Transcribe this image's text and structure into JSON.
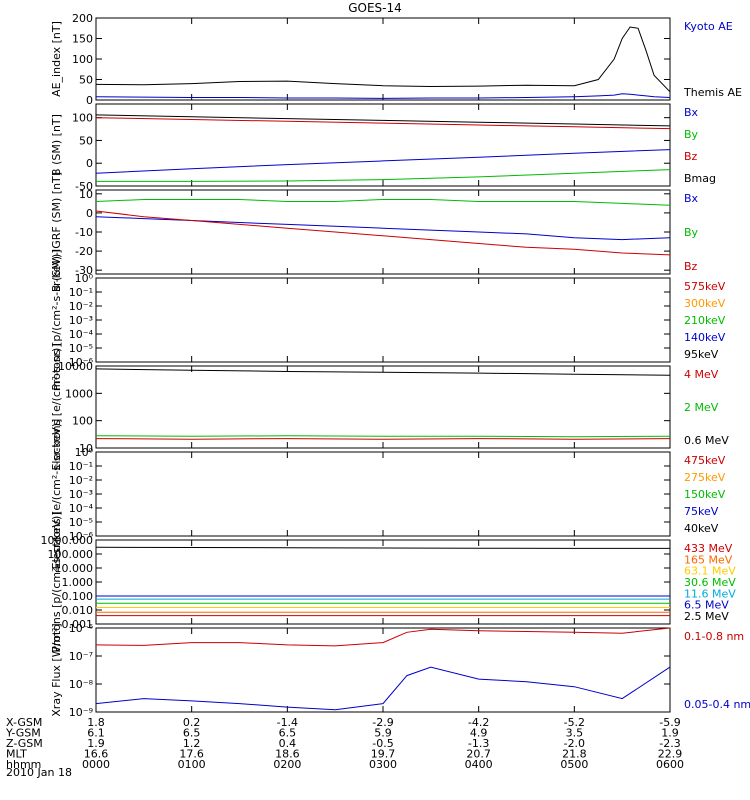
{
  "title": "GOES-14",
  "chart_data": [
    {
      "type": "line",
      "ylabel": "AE_index [nT]",
      "yscale": "linear",
      "ylim": [
        0,
        200
      ],
      "yticks": [
        "0",
        "50",
        "100",
        "150",
        "200"
      ],
      "x": [
        "0000",
        "0030",
        "0100",
        "0130",
        "0200",
        "0230",
        "0300",
        "0330",
        "0400",
        "0430",
        "0500",
        "0515",
        "0525",
        "0530",
        "0535",
        "0540",
        "0545",
        "0550",
        "0600"
      ],
      "series": [
        {
          "name": "Kyoto AE",
          "color": "#0000cc",
          "values": [
            8,
            7,
            6,
            6,
            5,
            5,
            4,
            5,
            5,
            6,
            8,
            10,
            12,
            15,
            14,
            12,
            10,
            8,
            6
          ]
        },
        {
          "name": "Themis AE",
          "color": "#000000",
          "values": [
            38,
            37,
            40,
            45,
            46,
            40,
            35,
            33,
            34,
            36,
            35,
            50,
            100,
            150,
            178,
            175,
            120,
            60,
            20
          ]
        }
      ]
    },
    {
      "type": "line",
      "ylabel": "B (SM) [nT]",
      "yscale": "linear",
      "ylim": [
        -50,
        130
      ],
      "yticks": [
        "-50",
        "0",
        "50",
        "100"
      ],
      "x": [
        "0000",
        "0100",
        "0200",
        "0300",
        "0400",
        "0500",
        "0600"
      ],
      "series": [
        {
          "name": "Bx",
          "color": "#0000cc",
          "values": [
            -22,
            -12,
            -3,
            5,
            13,
            22,
            30
          ]
        },
        {
          "name": "By",
          "color": "#00bb00",
          "values": [
            -40,
            -40,
            -39,
            -36,
            -30,
            -22,
            -14
          ]
        },
        {
          "name": "Bz",
          "color": "#cc0000",
          "values": [
            100,
            96,
            92,
            88,
            84,
            80,
            76
          ]
        },
        {
          "name": "Bmag",
          "color": "#000000",
          "values": [
            106,
            102,
            98,
            94,
            90,
            86,
            82
          ]
        }
      ]
    },
    {
      "type": "line",
      "ylabel": "B (SM)-IGRF (SM) [nT]",
      "yscale": "linear",
      "ylim": [
        -32,
        12
      ],
      "yticks": [
        "-30",
        "-20",
        "-10",
        "0",
        "10"
      ],
      "x": [
        "0000",
        "0030",
        "0100",
        "0130",
        "0200",
        "0230",
        "0300",
        "0330",
        "0400",
        "0430",
        "0500",
        "0530",
        "0600"
      ],
      "series": [
        {
          "name": "Bx",
          "color": "#0000cc",
          "values": [
            -2,
            -3,
            -4,
            -5,
            -6,
            -7,
            -8,
            -9,
            -10,
            -11,
            -13,
            -14,
            -13
          ]
        },
        {
          "name": "By",
          "color": "#00bb00",
          "values": [
            6,
            7,
            7,
            7,
            6,
            6,
            7,
            7,
            6,
            6,
            6,
            5,
            4
          ]
        },
        {
          "name": "Bz",
          "color": "#cc0000",
          "values": [
            1,
            -2,
            -4,
            -6,
            -8,
            -10,
            -12,
            -14,
            -16,
            -18,
            -19,
            -21,
            -22
          ]
        }
      ]
    },
    {
      "type": "line",
      "ylabel": "Protons [p/(cm²-s-sr-keV)]",
      "yscale": "log",
      "ylim": [
        1e-06,
        1
      ],
      "yticks": [
        "10⁰",
        "10⁻¹",
        "10⁻²",
        "10⁻³",
        "10⁻⁴",
        "10⁻⁵",
        "10⁻⁶"
      ],
      "legend": [
        {
          "name": "575keV",
          "color": "#cc0000"
        },
        {
          "name": "300keV",
          "color": "#ff9900"
        },
        {
          "name": "210keV",
          "color": "#00bb00"
        },
        {
          "name": "140keV",
          "color": "#0000cc"
        },
        {
          "name": "95keV",
          "color": "#000000"
        }
      ],
      "series": []
    },
    {
      "type": "line",
      "ylabel": "Electrons [e/(cm²-s-sr)]",
      "yscale": "log",
      "ylim": [
        10,
        10000
      ],
      "yticks": [
        "10",
        "100",
        "1000",
        "10000"
      ],
      "x": [
        "0000",
        "0100",
        "0200",
        "0300",
        "0400",
        "0500",
        "0600"
      ],
      "series": [
        {
          "name": "4 MeV",
          "color": "#cc0000",
          "values": [
            22,
            21,
            22,
            21,
            22,
            21,
            22
          ]
        },
        {
          "name": "2 MeV",
          "color": "#00bb00",
          "values": [
            28,
            27,
            28,
            27,
            27,
            26,
            27
          ]
        },
        {
          "name": "0.6 MeV",
          "color": "#000000",
          "values": [
            7800,
            7000,
            6300,
            5900,
            5500,
            5000,
            4600
          ]
        }
      ]
    },
    {
      "type": "line",
      "ylabel": "Electrons [e/(cm²-s-sr-keV)]",
      "yscale": "log",
      "ylim": [
        1e-06,
        1
      ],
      "yticks": [
        "10⁰",
        "10⁻¹",
        "10⁻²",
        "10⁻³",
        "10⁻⁴",
        "10⁻⁵",
        "10⁻⁶"
      ],
      "legend": [
        {
          "name": "475keV",
          "color": "#cc0000"
        },
        {
          "name": "275keV",
          "color": "#ff9900"
        },
        {
          "name": "150keV",
          "color": "#00bb00"
        },
        {
          "name": "75keV",
          "color": "#0000cc"
        },
        {
          "name": "40keV",
          "color": "#000000"
        }
      ],
      "series": []
    },
    {
      "type": "line",
      "ylabel": "Protons [p/(cm²-s-sr-keV)]",
      "yscale": "log",
      "ylim": [
        0.001,
        1000
      ],
      "yticks": [
        "0.001",
        "0.010",
        "0.100",
        "1.000",
        "10.000",
        "100.000",
        "1000.000"
      ],
      "x": [
        "0000",
        "0100",
        "0200",
        "0300",
        "0400",
        "0500",
        "0600"
      ],
      "series": [
        {
          "name": "433 MeV",
          "color": "#cc0000",
          "values": [
            0.004,
            0.004,
            0.004,
            0.004,
            0.004,
            0.004,
            0.004
          ]
        },
        {
          "name": "165 MeV",
          "color": "#ff6600",
          "values": [
            0.007,
            0.007,
            0.007,
            0.007,
            0.007,
            0.007,
            0.007
          ]
        },
        {
          "name": "63.1 MeV",
          "color": "#ffcc00",
          "values": [
            0.015,
            0.015,
            0.015,
            0.015,
            0.015,
            0.015,
            0.015
          ]
        },
        {
          "name": "30.6 MeV",
          "color": "#00bb00",
          "values": [
            0.03,
            0.03,
            0.03,
            0.03,
            0.03,
            0.03,
            0.03
          ]
        },
        {
          "name": "11.6 MeV",
          "color": "#00aadd",
          "values": [
            0.06,
            0.06,
            0.06,
            0.06,
            0.06,
            0.06,
            0.06
          ]
        },
        {
          "name": "6.5 MeV",
          "color": "#0000cc",
          "values": [
            0.1,
            0.1,
            0.1,
            0.1,
            0.1,
            0.1,
            0.1
          ]
        },
        {
          "name": "2.5 MeV",
          "color": "#000000",
          "values": [
            300,
            290,
            280,
            270,
            260,
            250,
            250
          ]
        }
      ]
    },
    {
      "type": "line",
      "ylabel": "Xray Flux [W/m²]",
      "yscale": "log",
      "ylim": [
        1e-09,
        1e-06
      ],
      "yticks": [
        "10⁻⁶",
        "10⁻⁷",
        "10⁻⁸",
        "10⁻⁹"
      ],
      "x": [
        "0000",
        "0030",
        "0100",
        "0130",
        "0200",
        "0230",
        "0300",
        "0315",
        "0330",
        "0400",
        "0430",
        "0500",
        "0530",
        "0600"
      ],
      "series": [
        {
          "name": "0.1-0.8 nm",
          "color": "#cc0000",
          "values": [
            2.5e-07,
            2.4e-07,
            3e-07,
            3e-07,
            2.5e-07,
            2.3e-07,
            3e-07,
            7e-07,
            9e-07,
            8e-07,
            7.5e-07,
            7e-07,
            6.5e-07,
            1e-06
          ]
        },
        {
          "name": "0.05-0.4 nm",
          "color": "#0000cc",
          "values": [
            2e-09,
            3e-09,
            2.5e-09,
            2e-09,
            1.5e-09,
            1.2e-09,
            2e-09,
            2e-08,
            4e-08,
            1.5e-08,
            1.2e-08,
            8e-09,
            3e-09,
            4e-08
          ]
        }
      ]
    }
  ],
  "footer": {
    "rows": [
      {
        "label": "X-GSM",
        "values": [
          "1.8",
          "0.2",
          "-1.4",
          "-2.9",
          "-4.2",
          "-5.2",
          "-5.9"
        ]
      },
      {
        "label": "Y-GSM",
        "values": [
          "6.1",
          "6.5",
          "6.5",
          "5.9",
          "4.9",
          "3.5",
          "1.9"
        ]
      },
      {
        "label": "Z-GSM",
        "values": [
          "1.9",
          "1.2",
          "0.4",
          "-0.5",
          "-1.3",
          "-2.0",
          "-2.3"
        ]
      },
      {
        "label": "MLT",
        "values": [
          "16.6",
          "17.6",
          "18.6",
          "19.7",
          "20.7",
          "21.8",
          "22.9"
        ]
      },
      {
        "label": "hhmm",
        "values": [
          "0000",
          "0100",
          "0200",
          "0300",
          "0400",
          "0500",
          "0600"
        ]
      }
    ],
    "date": "2010 Jan 18"
  }
}
